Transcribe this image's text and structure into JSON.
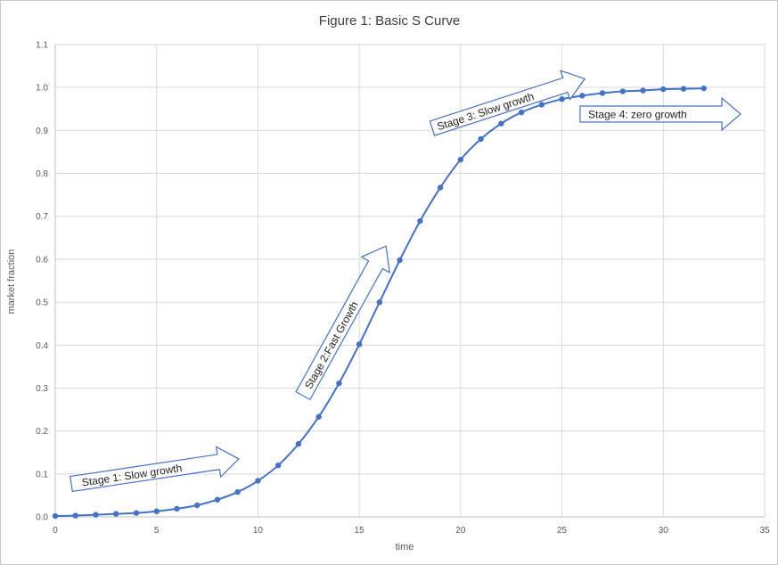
{
  "chart_data": {
    "type": "scatter",
    "title": "Figure 1: Basic S Curve",
    "xlabel": "time",
    "ylabel": "market fraction",
    "xlim": [
      0,
      35
    ],
    "ylim": [
      0,
      1.1
    ],
    "xticks": [
      "0",
      "5",
      "10",
      "15",
      "20",
      "25",
      "30",
      "35"
    ],
    "yticks": [
      "0.0",
      "0.1",
      "0.2",
      "0.3",
      "0.4",
      "0.5",
      "0.6",
      "0.7",
      "0.8",
      "0.9",
      "1.0",
      "1.1"
    ],
    "grid": true,
    "series_color": "#4472C4",
    "x": [
      0,
      1,
      2,
      3,
      4,
      5,
      6,
      7,
      8,
      9,
      10,
      11,
      12,
      13,
      14,
      15,
      16,
      17,
      18,
      19,
      20,
      21,
      22,
      23,
      24,
      25,
      26,
      27,
      28,
      29,
      30,
      31,
      32
    ],
    "y": [
      0.002,
      0.003,
      0.005,
      0.007,
      0.009,
      0.013,
      0.019,
      0.027,
      0.04,
      0.058,
      0.084,
      0.12,
      0.17,
      0.233,
      0.311,
      0.402,
      0.5,
      0.598,
      0.689,
      0.767,
      0.832,
      0.88,
      0.916,
      0.942,
      0.96,
      0.973,
      0.981,
      0.987,
      0.991,
      0.993,
      0.996,
      0.997,
      0.998
    ],
    "annotations": [
      "Stage 1: Slow growth",
      "Stage 2:Fast Growth",
      "Stage 3: Slow growth",
      "Stage 4: zero growth"
    ]
  }
}
